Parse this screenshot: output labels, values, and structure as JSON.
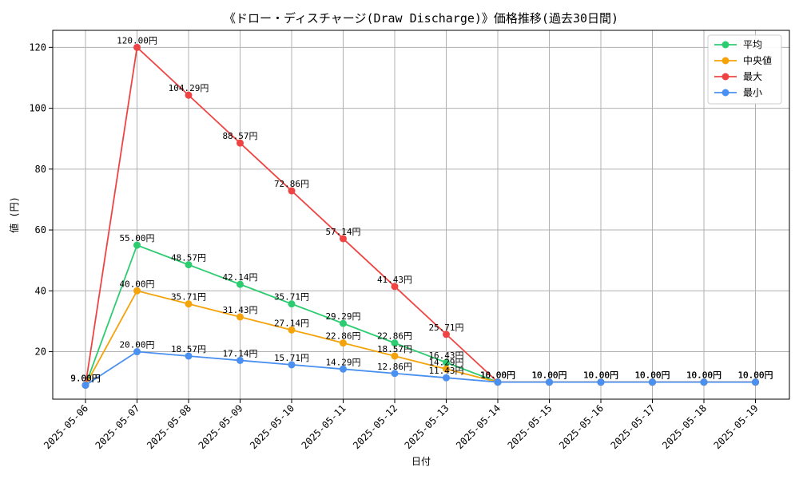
{
  "chart_data": {
    "type": "line",
    "title": "《ドロー・ディスチャージ(Draw Discharge)》価格推移(過去30日間)",
    "xlabel": "日付",
    "ylabel": "値 (円)",
    "x": [
      "2025-05-06",
      "2025-05-07",
      "2025-05-08",
      "2025-05-09",
      "2025-05-10",
      "2025-05-11",
      "2025-05-12",
      "2025-05-13",
      "2025-05-14",
      "2025-05-15",
      "2025-05-16",
      "2025-05-17",
      "2025-05-18",
      "2025-05-19"
    ],
    "ylim": [
      4.4,
      125.6
    ],
    "yticks": [
      20,
      40,
      60,
      80,
      100,
      120
    ],
    "grid": true,
    "legend_position": "top-right",
    "label_suffix": "円",
    "series": [
      {
        "name": "平均",
        "color": "#2ecc71",
        "values": [
          9.0,
          55.0,
          48.57,
          42.14,
          35.71,
          29.29,
          22.86,
          16.43,
          10.0,
          10.0,
          10.0,
          10.0,
          10.0,
          10.0
        ]
      },
      {
        "name": "中央値",
        "color": "#f5a30a",
        "values": [
          9.0,
          40.0,
          35.71,
          31.43,
          27.14,
          22.86,
          18.57,
          14.29,
          10.0,
          10.0,
          10.0,
          10.0,
          10.0,
          10.0
        ]
      },
      {
        "name": "最大",
        "color": "#ef4444",
        "values": [
          9.0,
          120.0,
          104.29,
          88.57,
          72.86,
          57.14,
          41.43,
          25.71,
          10.0,
          10.0,
          10.0,
          10.0,
          10.0,
          10.0
        ]
      },
      {
        "name": "最小",
        "color": "#4a90f0",
        "values": [
          9.0,
          20.0,
          18.57,
          17.14,
          15.71,
          14.29,
          12.86,
          11.43,
          10.0,
          10.0,
          10.0,
          10.0,
          10.0,
          10.0
        ]
      }
    ]
  }
}
